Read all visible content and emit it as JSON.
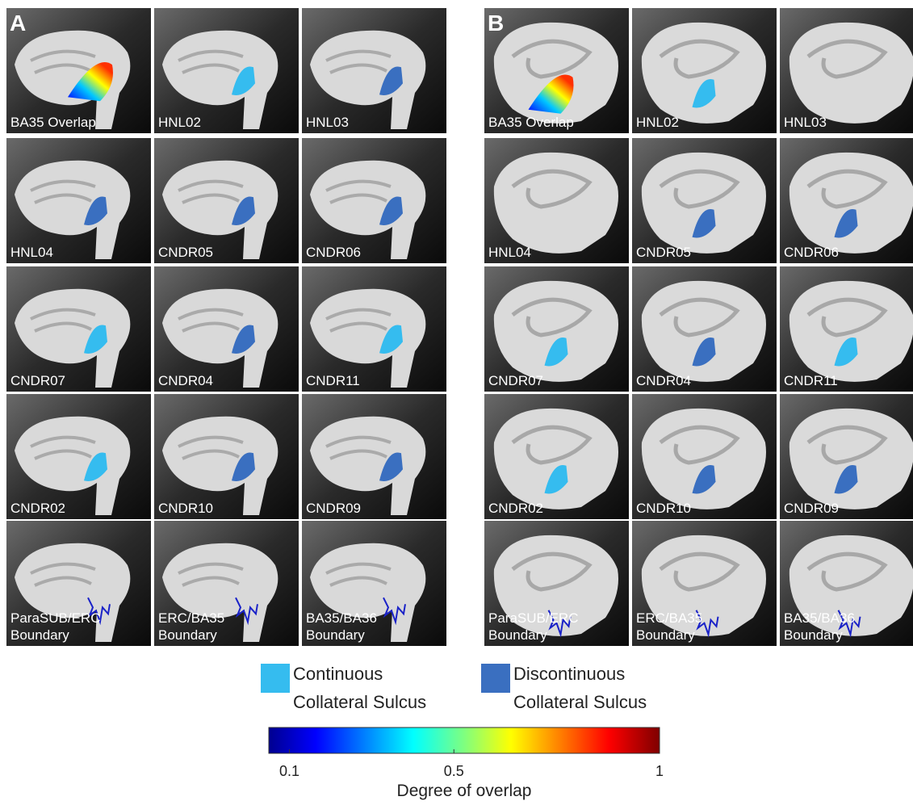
{
  "panels": [
    {
      "label": "A",
      "tiles": [
        {
          "label": [
            "BA35 Overlap"
          ],
          "color": "gradient"
        },
        {
          "label": [
            "HNL02"
          ],
          "color": "#35bcef"
        },
        {
          "label": [
            "HNL03"
          ],
          "color": "#3a6fc0"
        },
        {
          "label": [
            "HNL04"
          ],
          "color": "#3a6fc0"
        },
        {
          "label": [
            "CNDR05"
          ],
          "color": "#3a6fc0"
        },
        {
          "label": [
            "CNDR06"
          ],
          "color": "#3a6fc0"
        },
        {
          "label": [
            "CNDR07"
          ],
          "color": "#35bcef"
        },
        {
          "label": [
            "CNDR04"
          ],
          "color": "#3a6fc0"
        },
        {
          "label": [
            "CNDR11"
          ],
          "color": "#35bcef"
        },
        {
          "label": [
            "CNDR02"
          ],
          "color": "#35bcef"
        },
        {
          "label": [
            "CNDR10"
          ],
          "color": "#3a6fc0"
        },
        {
          "label": [
            "CNDR09"
          ],
          "color": "#3a6fc0"
        },
        {
          "label": [
            "ParaSUB/ERC",
            "Boundary"
          ],
          "color": "#1a22c8"
        },
        {
          "label": [
            "ERC/BA35",
            "Boundary"
          ],
          "color": "#1a22c8"
        },
        {
          "label": [
            "BA35/BA36",
            "Boundary"
          ],
          "color": "#1a22c8"
        }
      ]
    },
    {
      "label": "B",
      "tiles": [
        {
          "label": [
            "BA35 Overlap"
          ],
          "color": "gradient"
        },
        {
          "label": [
            "HNL02"
          ],
          "color": "#35bcef"
        },
        {
          "label": [
            "HNL03"
          ]
        },
        {
          "label": [
            "HNL04"
          ]
        },
        {
          "label": [
            "CNDR05"
          ],
          "color": "#3a6fc0"
        },
        {
          "label": [
            "CNDR06"
          ],
          "color": "#3a6fc0"
        },
        {
          "label": [
            "CNDR07"
          ],
          "color": "#35bcef"
        },
        {
          "label": [
            "CNDR04"
          ],
          "color": "#3a6fc0"
        },
        {
          "label": [
            "CNDR11"
          ],
          "color": "#35bcef"
        },
        {
          "label": [
            "CNDR02"
          ],
          "color": "#35bcef"
        },
        {
          "label": [
            "CNDR10"
          ],
          "color": "#3a6fc0"
        },
        {
          "label": [
            "CNDR09"
          ],
          "color": "#3a6fc0"
        },
        {
          "label": [
            "ParaSUB/ERC",
            "Boundary"
          ],
          "color": "#1a22c8"
        },
        {
          "label": [
            "ERC/BA35",
            "Boundary"
          ],
          "color": "#1a22c8"
        },
        {
          "label": [
            "BA35/BA36",
            "Boundary"
          ],
          "color": "#1a22c8"
        }
      ]
    }
  ],
  "legend": [
    {
      "label": [
        "Continuous",
        "Collateral Sulcus"
      ],
      "color": "#35bcef"
    },
    {
      "label": [
        "Discontinuous",
        "Collateral Sulcus"
      ],
      "color": "#3a6fc0"
    }
  ],
  "colorbar": {
    "title": "Degree of overlap",
    "lim": [
      0.05,
      1
    ],
    "ticks": [
      0.1,
      0.5,
      1
    ]
  }
}
